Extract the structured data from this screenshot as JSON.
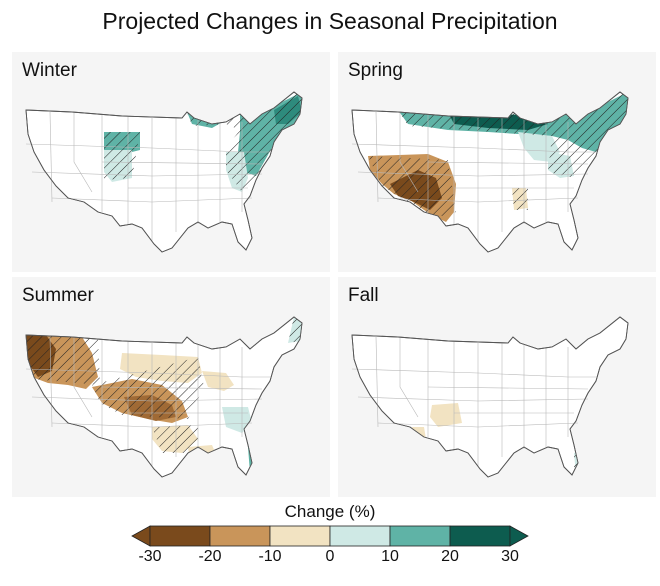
{
  "title": "Projected Changes in Seasonal Precipitation",
  "panels": [
    {
      "season": "Winter"
    },
    {
      "season": "Spring"
    },
    {
      "season": "Summer"
    },
    {
      "season": "Fall"
    }
  ],
  "legend": {
    "title": "Change (%)",
    "ticks": [
      "-30",
      "-20",
      "-10",
      "0",
      "10",
      "20",
      "30"
    ],
    "colors": [
      "#7a4a1c",
      "#c9955a",
      "#f2e3c2",
      "#ffffff",
      "#cfe9e5",
      "#5fb3a6",
      "#0d5c4f"
    ]
  },
  "colors": {
    "strong_dry": "#7a4a1c",
    "moderate_dry": "#c9955a",
    "slight_dry": "#f2e3c2",
    "slight_wet": "#cfe9e5",
    "moderate_wet": "#5fb3a6",
    "strong_wet": "#0d5c4f",
    "panel_bg": "#f5f5f5"
  }
}
